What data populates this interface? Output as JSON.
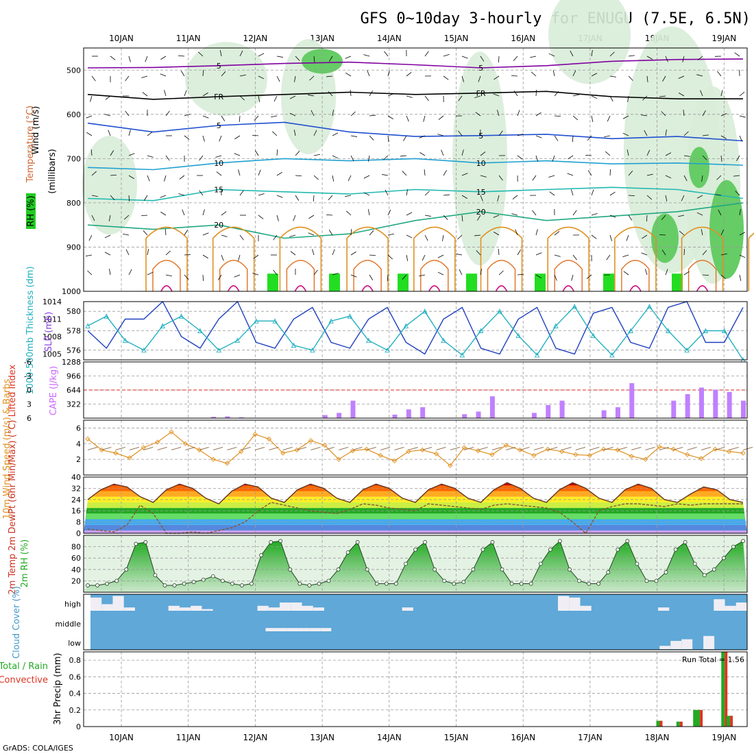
{
  "title": "GFS 0~10day 3-hourly for ENUGU (7.5E, 6.5N)",
  "footer": "GrADS: COLA/IGES",
  "dates": [
    "10JAN",
    "11JAN",
    "12JAN",
    "13JAN",
    "14JAN",
    "15JAN",
    "16JAN",
    "17JAN",
    "18JAN",
    "19JAN"
  ],
  "colors": {
    "temp": "#cc0000",
    "wind_purple": "#8000a0",
    "rh_green": "#22aa22",
    "cape": "#c080ff",
    "cyan": "#22b0c0",
    "blue": "#2040c0",
    "orange": "#e09020",
    "sky": "#5fa8d8"
  },
  "chart_data": [
    {
      "type": "heatmap",
      "panel": "upper-air",
      "labels": {
        "axis_wind": "Wind (m/s)",
        "axis_temp": "Temperature (°C)",
        "axis_rh": "RH (%)",
        "axis_level": "(millibars)"
      },
      "y_ticks": [
        500,
        600,
        700,
        800,
        900,
        1000
      ],
      "ylim": [
        450,
        1000
      ],
      "contour_labels": [
        "5",
        "FR",
        "10",
        "15",
        "20"
      ],
      "isotherms": [
        {
          "name": "-5",
          "color": "#8000a0",
          "p": [
            495,
            494,
            490,
            485,
            482,
            488,
            495,
            490,
            480,
            476,
            475
          ]
        },
        {
          "name": "FR",
          "color": "#000000",
          "p": [
            555,
            566,
            560,
            555,
            550,
            555,
            552,
            548,
            560,
            565,
            565
          ]
        },
        {
          "name": "5",
          "color": "#2050d0",
          "p": [
            620,
            640,
            625,
            618,
            640,
            650,
            648,
            645,
            655,
            650,
            660
          ]
        },
        {
          "name": "10",
          "color": "#20a0d0",
          "p": [
            720,
            725,
            710,
            700,
            705,
            700,
            710,
            705,
            712,
            710,
            715
          ]
        },
        {
          "name": "15",
          "color": "#20b8b0",
          "p": [
            790,
            795,
            770,
            775,
            780,
            770,
            775,
            770,
            765,
            770,
            790
          ]
        },
        {
          "name": "20",
          "color": "#20a880",
          "p": [
            850,
            860,
            850,
            880,
            870,
            840,
            820,
            840,
            830,
            820,
            800
          ]
        }
      ]
    },
    {
      "type": "line",
      "panel": "thickness-slp",
      "labels": {
        "axis_left": "1000-500mb Thickness (dm)",
        "axis_right": "SLP (mb)"
      },
      "left_ticks": [
        576,
        578,
        580
      ],
      "right_ticks": [
        1005,
        1008,
        1011,
        1014
      ],
      "ylim_left": [
        575,
        581
      ],
      "ylim_right": [
        1004,
        1014
      ],
      "series": [
        {
          "name": "SLP (mb)",
          "color": "#2040c0",
          "values": [
            1009,
            1006,
            1011,
            1011,
            1014,
            1008,
            1006,
            1011,
            1014,
            1007,
            1006,
            1011,
            1013,
            1007,
            1006,
            1011,
            1013,
            1007,
            1005,
            1011,
            1013,
            1006,
            1005,
            1011,
            1013,
            1006,
            1005,
            1012,
            1013,
            1007,
            1006,
            1013,
            1014,
            1007,
            1007,
            1013
          ]
        },
        {
          "name": "1000-500mb Thickness (dm)",
          "color": "#22b0c0",
          "values": [
            578.5,
            579.5,
            577,
            576,
            578.5,
            579.5,
            578,
            576,
            577,
            579,
            579,
            576.5,
            576,
            579,
            579.5,
            577,
            576,
            578.5,
            580,
            577,
            575.5,
            578,
            580,
            577.5,
            575.5,
            578.5,
            580.5,
            577.5,
            575.5,
            578,
            580.5,
            578,
            576,
            578,
            578,
            575
          ]
        }
      ]
    },
    {
      "type": "bar",
      "panel": "cape-lifted",
      "labels": {
        "axis_left": "Lifted Index",
        "axis_right": "CAPE (J/kg)"
      },
      "left_ticks": [
        -6,
        -3,
        0,
        3,
        6
      ],
      "right_ticks": [
        322,
        644,
        966,
        1288
      ],
      "ylim": [
        0,
        1288
      ],
      "series": [
        {
          "name": "CAPE (J/kg)",
          "color": "#c080ff",
          "values": [
            0,
            0,
            0,
            0,
            0,
            0,
            0,
            0,
            0,
            30,
            40,
            20,
            0,
            0,
            0,
            0,
            0,
            70,
            120,
            400,
            0,
            0,
            80,
            200,
            250,
            0,
            0,
            90,
            150,
            500,
            0,
            0,
            120,
            300,
            400,
            0,
            0,
            180,
            250,
            800,
            0,
            0,
            400,
            550,
            700,
            650,
            600,
            400
          ]
        }
      ]
    },
    {
      "type": "line",
      "panel": "wind10m",
      "labels": {
        "axis": "10m Wind Speed (m/s) & Barbs"
      },
      "y_ticks": [
        2,
        4,
        6
      ],
      "ylim": [
        0,
        7
      ],
      "series": [
        {
          "name": "10m Wind Speed",
          "color": "#e09020",
          "values": [
            4.6,
            3.2,
            2.8,
            2.2,
            3.5,
            4.2,
            5.5,
            4.0,
            3.2,
            2.0,
            1.5,
            3.0,
            5.2,
            4.6,
            2.8,
            3.2,
            4.4,
            3.8,
            2.0,
            3.1,
            3.3,
            2.5,
            1.8,
            3.0,
            3.2,
            2.7,
            1.2,
            3.5,
            3.1,
            2.6,
            3.8,
            3.2,
            2.5,
            3.3,
            3.0,
            2.6,
            2.5,
            3.3,
            3.2,
            2.4,
            2.0,
            3.6,
            3.3,
            2.6,
            2.1,
            3.3,
            3.0,
            2.8
          ]
        }
      ]
    },
    {
      "type": "area",
      "panel": "temp2m",
      "labels": {
        "axis": "2m Temp 2m DewPt (6hr Min/Max) (°C)"
      },
      "y_ticks": [
        0,
        8,
        16,
        24,
        32,
        40
      ],
      "ylim": [
        0,
        40
      ],
      "series": [
        {
          "name": "2m Temp",
          "color": "#cc2200",
          "values": [
            24,
            31,
            35,
            33,
            26,
            22,
            31,
            35,
            32,
            25,
            21,
            30,
            35,
            33,
            25,
            22,
            31,
            35,
            32,
            25,
            22,
            31,
            35,
            32,
            25,
            22,
            31,
            35,
            32,
            25,
            22,
            31,
            36,
            32,
            25,
            22,
            31,
            36,
            32,
            25,
            22,
            31,
            35,
            32,
            24,
            22,
            28,
            33,
            31,
            24,
            22
          ]
        },
        {
          "name": "2m DewPt",
          "color": "#885533",
          "values": [
            3,
            2,
            1,
            6,
            20,
            14,
            0,
            0,
            1,
            0,
            2,
            4,
            8,
            16,
            22,
            20,
            18,
            16,
            15,
            14,
            17,
            21,
            20,
            18,
            17,
            16,
            21,
            20,
            19,
            18,
            17,
            20,
            21,
            20,
            19,
            18,
            15,
            8,
            0,
            16,
            19,
            21,
            21,
            20,
            19,
            21,
            20,
            21,
            21,
            21,
            21
          ]
        }
      ]
    },
    {
      "type": "area",
      "panel": "rh2m",
      "labels": {
        "axis": "2m RH (%)"
      },
      "y_ticks": [
        20,
        40,
        60,
        80
      ],
      "ylim": [
        0,
        100
      ],
      "series": [
        {
          "name": "2m RH",
          "color": "#22aa22",
          "values": [
            12,
            12,
            15,
            20,
            40,
            85,
            88,
            30,
            12,
            12,
            15,
            18,
            22,
            28,
            20,
            15,
            12,
            15,
            65,
            88,
            90,
            40,
            15,
            12,
            15,
            20,
            40,
            70,
            88,
            40,
            15,
            15,
            15,
            50,
            75,
            88,
            40,
            20,
            15,
            18,
            40,
            75,
            88,
            40,
            15,
            15,
            15,
            50,
            75,
            90,
            40,
            20,
            15,
            15,
            35,
            75,
            90,
            50,
            20,
            20,
            35,
            75,
            88,
            50,
            30,
            40,
            60,
            80,
            90
          ]
        }
      ]
    },
    {
      "type": "bar",
      "panel": "cloud-cover",
      "labels": {
        "axis": "Cloud Cover (%)",
        "high": "high",
        "middle": "middle",
        "low": "low"
      },
      "series": [
        {
          "name": "high",
          "values": [
            0.8,
            0.4,
            0.9,
            0.2,
            0,
            0,
            0,
            0.3,
            0.2,
            0.3,
            0.1,
            0,
            0,
            0,
            0,
            0.3,
            0.2,
            0.5,
            0.5,
            0.3,
            0.2,
            0,
            0,
            0,
            0,
            0,
            0,
            0,
            0.2,
            0,
            0,
            0,
            0,
            0,
            0,
            0,
            0,
            0,
            0,
            0,
            0,
            0,
            0.9,
            0.8,
            0.3,
            0,
            0,
            0,
            0,
            0,
            0,
            0.2,
            0,
            0,
            0,
            0,
            0.7,
            0.3,
            0.5
          ]
        },
        {
          "name": "middle",
          "values": [
            0,
            0,
            0,
            0,
            0,
            0,
            0,
            0,
            0,
            0,
            0,
            0,
            0,
            0,
            0,
            0,
            0.2,
            0.2,
            0.2,
            0.2,
            0.2,
            0.2,
            0,
            0,
            0,
            0,
            0,
            0,
            0,
            0,
            0,
            0,
            0,
            0,
            0,
            0,
            0,
            0,
            0,
            0,
            0,
            0,
            0,
            0,
            0,
            0,
            0,
            0,
            0,
            0,
            0,
            0,
            0,
            0,
            0,
            0,
            0,
            0,
            0,
            0
          ]
        },
        {
          "name": "low",
          "values": [
            0,
            0,
            0,
            0,
            0,
            0,
            0,
            0,
            0,
            0,
            0,
            0,
            0,
            0,
            0,
            0,
            0,
            0,
            0,
            0,
            0,
            0,
            0,
            0,
            0,
            0,
            0,
            0,
            0,
            0,
            0,
            0,
            0,
            0,
            0,
            0,
            0,
            0,
            0,
            0,
            0,
            0,
            0,
            0,
            0,
            0,
            0,
            0,
            0,
            0,
            0,
            0,
            0.2,
            0.5,
            0.6,
            0,
            0.8,
            0,
            0,
            0
          ]
        }
      ]
    },
    {
      "type": "bar",
      "panel": "precip",
      "labels": {
        "axis_left1": "Total / Rain",
        "axis_left2": "Convective",
        "axis": "3hr Precip (mm)",
        "run_total": "Run Total = 1.56"
      },
      "y_ticks": [
        0,
        0.2,
        0.4,
        0.6,
        0.8
      ],
      "ylim": [
        0,
        0.9
      ],
      "series": [
        {
          "name": "Total",
          "color": "#22aa22",
          "values": [
            0.07,
            0,
            0,
            0.06,
            0,
            0.2,
            0.2,
            0,
            0.9,
            0.13
          ]
        },
        {
          "name": "Convective",
          "color": "#dd3322",
          "values": [
            0.07,
            0,
            0,
            0.06,
            0,
            0.2,
            0.2,
            0,
            0.9,
            0.13
          ]
        }
      ],
      "x_days": [
        8.05,
        8.1,
        8.2,
        8.35,
        8.45,
        8.6,
        8.65,
        8.8,
        9.02,
        9.1
      ]
    }
  ]
}
